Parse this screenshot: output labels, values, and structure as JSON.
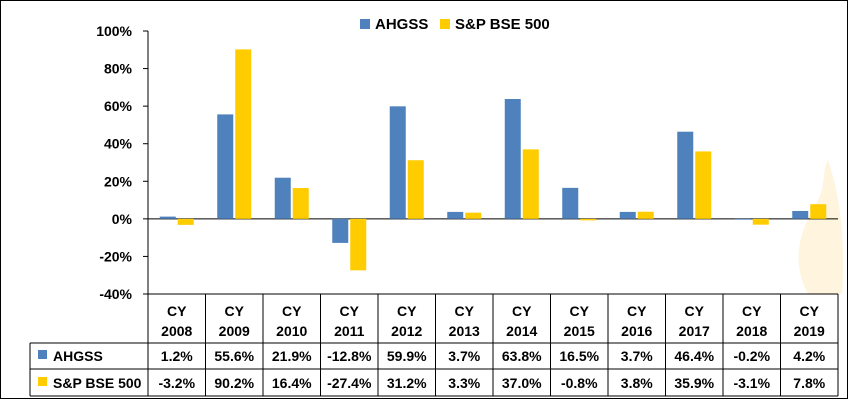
{
  "colors": {
    "ahgss": "#4F81BD",
    "bse500": "#FFCC00",
    "grid": "#000000"
  },
  "legend": {
    "entries": [
      "AHGSS",
      "S&P BSE 500"
    ]
  },
  "chart_data": {
    "type": "bar",
    "categories": [
      [
        "CY",
        "2008"
      ],
      [
        "CY",
        "2009"
      ],
      [
        "CY",
        "2010"
      ],
      [
        "CY",
        "2011"
      ],
      [
        "CY",
        "2012"
      ],
      [
        "CY",
        "2013"
      ],
      [
        "CY",
        "2014"
      ],
      [
        "CY",
        "2015"
      ],
      [
        "CY",
        "2016"
      ],
      [
        "CY",
        "2017"
      ],
      [
        "CY",
        "2018"
      ],
      [
        "CY",
        "2019"
      ]
    ],
    "series": [
      {
        "name": "AHGSS",
        "values": [
          1.2,
          55.6,
          21.9,
          -12.8,
          59.9,
          3.7,
          63.8,
          16.5,
          3.7,
          46.4,
          -0.2,
          4.2
        ],
        "labels": [
          "1.2%",
          "55.6%",
          "21.9%",
          "-12.8%",
          "59.9%",
          "3.7%",
          "63.8%",
          "16.5%",
          "3.7%",
          "46.4%",
          "-0.2%",
          "4.2%"
        ]
      },
      {
        "name": "S&P BSE 500",
        "values": [
          -3.2,
          90.2,
          16.4,
          -27.4,
          31.2,
          3.3,
          37.0,
          -0.8,
          3.8,
          35.9,
          -3.1,
          7.8
        ],
        "labels": [
          "-3.2%",
          "90.2%",
          "16.4%",
          "-27.4%",
          "31.2%",
          "3.3%",
          "37.0%",
          "-0.8%",
          "3.8%",
          "35.9%",
          "-3.1%",
          "7.8%"
        ]
      }
    ],
    "ylim": [
      -40,
      100
    ],
    "yticks": [
      "100%",
      "80%",
      "60%",
      "40%",
      "20%",
      "0%",
      "-20%",
      "-40%"
    ],
    "legend_position": "top",
    "data_table": true
  }
}
